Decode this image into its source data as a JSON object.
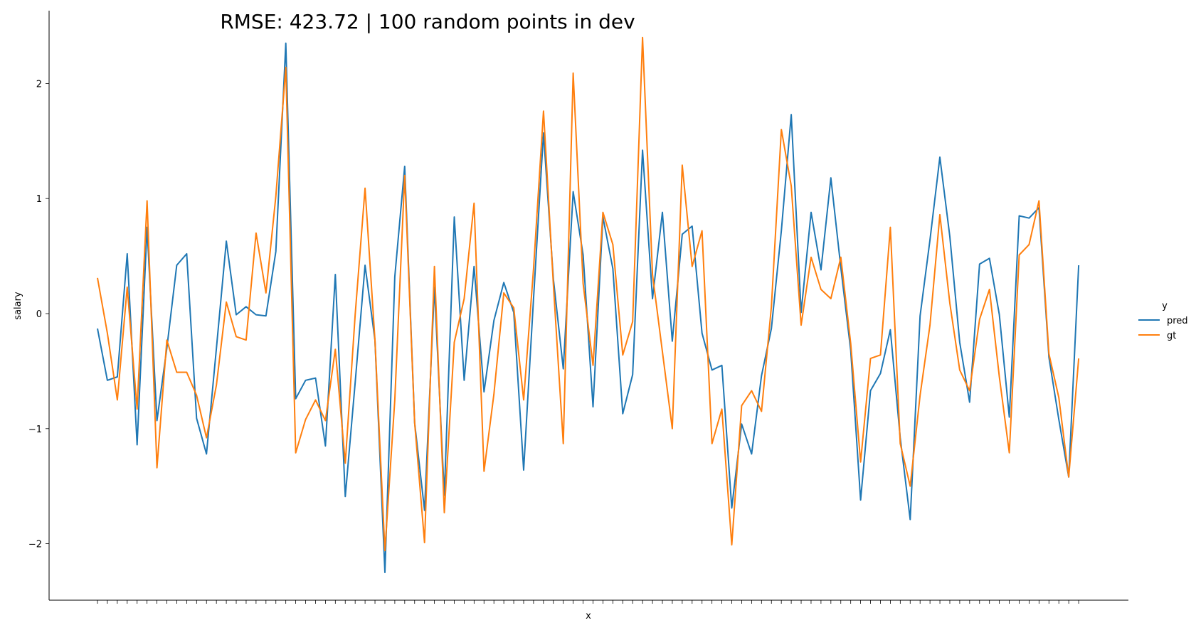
{
  "chart_data": {
    "type": "line",
    "title": "RMSE: 423.72 | 100 random points in dev",
    "xlabel": "x",
    "ylabel": "salary",
    "ylim": [
      -2.5,
      2.6
    ],
    "yticks": [
      -2,
      -1,
      0,
      1,
      2
    ],
    "ytick_labels": [
      "−2",
      "−1",
      "0",
      "1",
      "2"
    ],
    "x_tick_count": 100,
    "x_tick_labels_visible": false,
    "grid": false,
    "legend": {
      "title": "y",
      "placement": "right"
    },
    "x": [
      0,
      1,
      2,
      3,
      4,
      5,
      6,
      7,
      8,
      9,
      10,
      11,
      12,
      13,
      14,
      15,
      16,
      17,
      18,
      19,
      20,
      21,
      22,
      23,
      24,
      25,
      26,
      27,
      28,
      29,
      30,
      31,
      32,
      33,
      34,
      35,
      36,
      37,
      38,
      39,
      40,
      41,
      42,
      43,
      44,
      45,
      46,
      47,
      48,
      49,
      50,
      51,
      52,
      53,
      54,
      55,
      56,
      57,
      58,
      59,
      60,
      61,
      62,
      63,
      64,
      65,
      66,
      67,
      68,
      69,
      70,
      71,
      72,
      73,
      74,
      75,
      76,
      77,
      78,
      79,
      80,
      81,
      82,
      83,
      84,
      85,
      86,
      87,
      88,
      89,
      90,
      91,
      92,
      93,
      94,
      95,
      96,
      97,
      98,
      99
    ],
    "series": [
      {
        "name": "pred",
        "color": "#1f77b4",
        "values": [
          -0.13,
          -0.58,
          -0.55,
          0.52,
          -1.14,
          0.75,
          -0.93,
          -0.3,
          0.42,
          0.52,
          -0.91,
          -1.22,
          -0.3,
          0.63,
          -0.01,
          0.06,
          -0.01,
          -0.02,
          0.54,
          2.35,
          -0.74,
          -0.58,
          -0.56,
          -1.15,
          0.34,
          -1.59,
          -0.6,
          0.42,
          -0.23,
          -2.25,
          0.32,
          1.28,
          -0.95,
          -1.71,
          0.23,
          -1.58,
          0.84,
          -0.58,
          0.41,
          -0.68,
          -0.06,
          0.27,
          0.01,
          -1.36,
          0.13,
          1.57,
          0.3,
          -0.48,
          1.06,
          0.51,
          -0.81,
          0.84,
          0.39,
          -0.87,
          -0.53,
          1.42,
          0.13,
          0.88,
          -0.24,
          0.69,
          0.76,
          -0.17,
          -0.49,
          -0.45,
          -1.69,
          -0.96,
          -1.22,
          -0.54,
          -0.13,
          0.72,
          1.73,
          0.01,
          0.88,
          0.38,
          1.18,
          0.4,
          -0.32,
          -1.62,
          -0.67,
          -0.52,
          -0.14,
          -1.08,
          -1.79,
          -0.02,
          0.64,
          1.36,
          0.67,
          -0.25,
          -0.77,
          0.43,
          0.48,
          -0.01,
          -0.9,
          0.85,
          0.83,
          0.92,
          -0.38,
          -0.92,
          -1.42,
          0.42
        ]
      },
      {
        "name": "gt",
        "color": "#ff7f0e",
        "values": [
          0.31,
          -0.17,
          -0.75,
          0.23,
          -0.83,
          0.98,
          -1.34,
          -0.23,
          -0.51,
          -0.51,
          -0.71,
          -1.08,
          -0.62,
          0.1,
          -0.2,
          -0.23,
          0.7,
          0.18,
          1.02,
          2.14,
          -1.21,
          -0.92,
          -0.75,
          -0.93,
          -0.31,
          -1.3,
          -0.01,
          1.09,
          -0.23,
          -2.06,
          -0.75,
          1.2,
          -0.95,
          -1.99,
          0.41,
          -1.73,
          -0.25,
          0.13,
          0.96,
          -1.37,
          -0.7,
          0.18,
          0.05,
          -0.75,
          0.39,
          1.76,
          0.25,
          -1.13,
          2.09,
          0.26,
          -0.45,
          0.88,
          0.6,
          -0.36,
          -0.07,
          2.4,
          0.34,
          -0.33,
          -1.0,
          1.29,
          0.41,
          0.72,
          -1.13,
          -0.83,
          -2.01,
          -0.8,
          -0.67,
          -0.85,
          0.06,
          1.6,
          1.11,
          -0.1,
          0.49,
          0.21,
          0.13,
          0.49,
          -0.26,
          -1.29,
          -0.39,
          -0.36,
          0.75,
          -1.13,
          -1.5,
          -0.71,
          -0.1,
          0.86,
          0.09,
          -0.49,
          -0.67,
          -0.05,
          0.21,
          -0.55,
          -1.21,
          0.51,
          0.6,
          0.98,
          -0.35,
          -0.73,
          -1.42,
          -0.39
        ]
      }
    ]
  }
}
